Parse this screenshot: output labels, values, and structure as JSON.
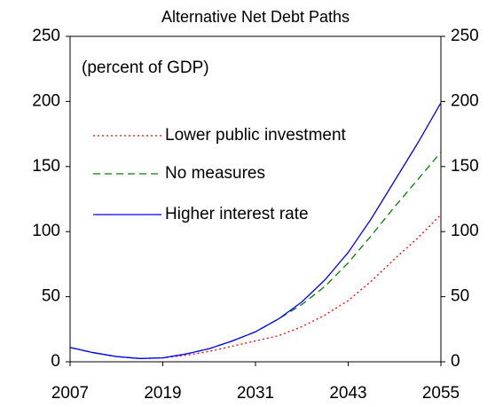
{
  "chart_data": {
    "type": "line",
    "title": "Alternative Net Debt Paths",
    "annotation": "(percent of GDP)",
    "x": [
      2007,
      2010,
      2013,
      2016,
      2019,
      2022,
      2025,
      2028,
      2031,
      2034,
      2037,
      2040,
      2043,
      2046,
      2049,
      2052,
      2055
    ],
    "series": [
      {
        "name": "Lower public investment",
        "color": "#ff0000",
        "dash": "dotted",
        "values": [
          11,
          7,
          4,
          2.5,
          3,
          5,
          8,
          12,
          16,
          20,
          27,
          36,
          47,
          62,
          79,
          95,
          113
        ]
      },
      {
        "name": "No measures",
        "color": "#008000",
        "dash": "dashed",
        "values": [
          11,
          7,
          4,
          2.5,
          3,
          6,
          10,
          16,
          23,
          33,
          44,
          58,
          76,
          97,
          119,
          140,
          161
        ]
      },
      {
        "name": "Higher interest rate",
        "color": "#0000ff",
        "dash": "solid",
        "values": [
          11,
          7,
          4,
          2.5,
          3,
          6,
          10,
          16,
          23,
          33,
          46,
          63,
          84,
          110,
          139,
          168,
          199
        ]
      }
    ],
    "xlim": [
      2007,
      2055
    ],
    "xticks": [
      2007,
      2019,
      2031,
      2043,
      2055
    ],
    "ylim": [
      0,
      250
    ],
    "yticks": [
      0,
      50,
      100,
      150,
      200,
      250
    ],
    "y2lim": [
      0,
      250
    ],
    "y2ticks": [
      0,
      50,
      100,
      150,
      200,
      250
    ],
    "grid": false,
    "legend": "upper left"
  }
}
